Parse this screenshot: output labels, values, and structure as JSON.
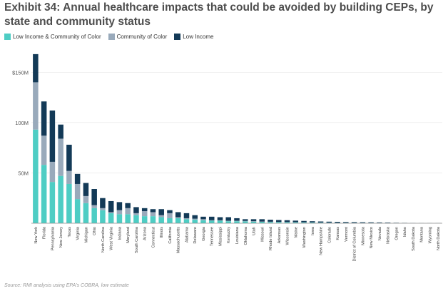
{
  "title": "Exhibit 34: Annual healthcare impacts that could be avoided by building CEPs, by state and community status",
  "source": "Source: RMI analysis using EPA's COBRA, low estimate",
  "colors": {
    "low_income_and_color": "#4ecdc4",
    "community_of_color": "#99aabb",
    "low_income": "#133a57",
    "axis": "#888888",
    "grid": "#e6e6e6"
  },
  "chart_data": {
    "type": "bar",
    "stacked": true,
    "ylim": [
      0,
      175
    ],
    "yticks": [
      50,
      100,
      150
    ],
    "ytick_labels": [
      "50M",
      "100M",
      "$150M"
    ],
    "legend_position": "top-left",
    "grid": false,
    "categories": [
      "New York",
      "Florida",
      "Pennsylvania",
      "New Jersey",
      "Texas",
      "Virginia",
      "Michigan",
      "Ohio",
      "North Carolina",
      "West Virginia",
      "Indiana",
      "Maryland",
      "South Carolina",
      "Arizona",
      "Connecticut",
      "Illinois",
      "California",
      "Massachusetts",
      "Alabama",
      "Delaware",
      "Georgia",
      "Tennessee",
      "Mississippi",
      "Kentucky",
      "Louisiana",
      "Oklahoma",
      "Utah",
      "Missouri",
      "Rhode Island",
      "Arkansas",
      "Wisconsin",
      "Maine",
      "Washington",
      "Iowa",
      "New Hampshire",
      "Colorado",
      "Kansas",
      "Vermont",
      "District of Columbia",
      "Minnesota",
      "New Mexico",
      "Nevada",
      "Nebraska",
      "Oregon",
      "Idaho",
      "South Dakota",
      "Montana",
      "Wyoming",
      "North Dakota"
    ],
    "series": [
      {
        "name": "Low Income & Community of Color",
        "values": [
          93,
          58,
          41,
          47,
          39,
          24,
          20,
          15,
          13,
          10,
          9,
          9,
          8,
          7,
          7,
          6,
          5,
          5,
          4,
          3.5,
          3,
          2.5,
          2.5,
          2,
          2,
          1.8,
          1.6,
          1.4,
          1.2,
          1.1,
          1,
          0.9,
          0.8,
          0.7,
          0.6,
          0.5,
          0.4,
          0.35,
          0.3,
          0.3,
          0.25,
          0.2,
          0.2,
          0.15,
          0.1,
          0.1,
          0.05,
          0.05,
          0.05
        ]
      },
      {
        "name": "Community of Color",
        "values": [
          47,
          29,
          20,
          37,
          13,
          15,
          7,
          3,
          2,
          1,
          4,
          6,
          2,
          5,
          4,
          2,
          5,
          1,
          1,
          1,
          1,
          0.5,
          0.5,
          0.5,
          0.5,
          0.5,
          0.4,
          0.3,
          0.3,
          0.3,
          0.2,
          0.2,
          0.2,
          0.2,
          0.15,
          0.15,
          0.1,
          0.1,
          0.1,
          0.1,
          0.1,
          0.1,
          0.05,
          0.05,
          0.05,
          0.05,
          0.05,
          0.05,
          0.05
        ]
      },
      {
        "name": "Low Income",
        "values": [
          28,
          34,
          51,
          14,
          26,
          10,
          13,
          16,
          10,
          11,
          8,
          5,
          6,
          3,
          3,
          6,
          3,
          5,
          5,
          3.5,
          2.5,
          3.5,
          3,
          3.5,
          2.5,
          1.7,
          2,
          2.3,
          2,
          1.8,
          1.8,
          1.5,
          1.3,
          1.1,
          1,
          0.9,
          0.9,
          0.75,
          0.7,
          0.6,
          0.55,
          0.5,
          0.45,
          0.3,
          0.25,
          0.15,
          0.1,
          0.1,
          0.1
        ]
      }
    ]
  }
}
